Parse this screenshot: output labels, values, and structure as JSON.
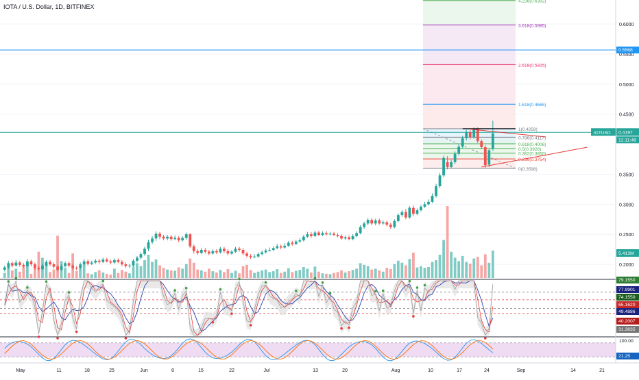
{
  "header": {
    "title": "IOTA / U.S. Dollar, 1D, BITFINEX"
  },
  "colors": {
    "up": "#26a69a",
    "down": "#ef5350",
    "vol_up": "#80cbc4",
    "vol_down": "#f4a6a4",
    "hline": "#2196f3",
    "fib_top": "#d1e7dd"
  },
  "price_axis": {
    "ticks": [
      "0.6000",
      "0.5500",
      "0.5000",
      "0.4500",
      "0.3500",
      "0.3000",
      "0.2500",
      "0.2000"
    ],
    "tick_values": [
      0.6,
      0.55,
      0.5,
      0.45,
      0.35,
      0.3,
      0.25,
      0.2
    ],
    "ylim": [
      0.175,
      0.64
    ]
  },
  "badges": {
    "hline_value": "0.5568",
    "symbol": "IOTUSD",
    "last_price": "0.4197",
    "countdown": "12:11:48",
    "volume": "5.413M"
  },
  "osc1_badges": [
    "79.1550",
    "77.9901",
    "74.1550",
    "65.1620",
    "49.4886",
    "40.2007",
    "31.3835"
  ],
  "osc2_badges": [
    "100.00",
    "21.25"
  ],
  "x_axis": {
    "labels": [
      "May",
      "11",
      "18",
      "25",
      "Jun",
      "8",
      "15",
      "22",
      "Jul",
      "13",
      "20",
      "Aug",
      "10",
      "17",
      "24",
      "Sep",
      "14",
      "21"
    ]
  },
  "fib_levels": [
    {
      "label": "4.236(0.6392)",
      "value": 0.6392,
      "color": "#4caf50"
    },
    {
      "label": "3.618(0.5985)",
      "value": 0.5985,
      "color": "#9c27b0"
    },
    {
      "label": "2.618(0.5325)",
      "value": 0.5325,
      "color": "#e91e63"
    },
    {
      "label": "1.618(0.4665)",
      "value": 0.4665,
      "color": "#2196f3"
    },
    {
      "label": "1(0.4258)",
      "value": 0.4258,
      "color": "#787b86"
    },
    {
      "label": "0.786(0.4117)",
      "value": 0.4117,
      "color": "#787b86"
    },
    {
      "label": "0.618(0.4006)",
      "value": 0.4006,
      "color": "#4caf50"
    },
    {
      "label": "0.5(0.3928)",
      "value": 0.3928,
      "color": "#4caf50"
    },
    {
      "label": "0.382(0.3850)",
      "value": 0.385,
      "color": "#4caf50"
    },
    {
      "label": "0.236(0.3754)",
      "value": 0.3754,
      "color": "#f44336"
    },
    {
      "label": "0(0.3598)",
      "value": 0.3598,
      "color": "#787b86"
    }
  ],
  "chart_data": {
    "type": "candlestick",
    "title": "IOTA / U.S. Dollar, 1D, BITFINEX",
    "horizontal_line": 0.5568,
    "last_price": 0.4197,
    "candles": [
      {
        "o": 0.191,
        "c": 0.195,
        "h": 0.198,
        "l": 0.188,
        "v": 0.12
      },
      {
        "o": 0.195,
        "c": 0.202,
        "h": 0.206,
        "l": 0.192,
        "v": 0.28
      },
      {
        "o": 0.202,
        "c": 0.198,
        "h": 0.205,
        "l": 0.195,
        "v": 0.18
      },
      {
        "o": 0.198,
        "c": 0.203,
        "h": 0.207,
        "l": 0.196,
        "v": 0.22
      },
      {
        "o": 0.203,
        "c": 0.199,
        "h": 0.206,
        "l": 0.196,
        "v": 0.15
      },
      {
        "o": 0.199,
        "c": 0.197,
        "h": 0.202,
        "l": 0.194,
        "v": 0.3
      },
      {
        "o": 0.197,
        "c": 0.205,
        "h": 0.209,
        "l": 0.195,
        "v": 0.35
      },
      {
        "o": 0.205,
        "c": 0.2,
        "h": 0.208,
        "l": 0.197,
        "v": 0.1
      },
      {
        "o": 0.2,
        "c": 0.194,
        "h": 0.203,
        "l": 0.191,
        "v": 0.26
      },
      {
        "o": 0.194,
        "c": 0.192,
        "h": 0.197,
        "l": 0.189,
        "v": 0.62
      },
      {
        "o": 0.192,
        "c": 0.198,
        "h": 0.201,
        "l": 0.19,
        "v": 0.48
      },
      {
        "o": 0.198,
        "c": 0.204,
        "h": 0.207,
        "l": 0.196,
        "v": 0.33
      },
      {
        "o": 0.204,
        "c": 0.2,
        "h": 0.207,
        "l": 0.197,
        "v": 0.14
      },
      {
        "o": 0.2,
        "c": 0.196,
        "h": 0.203,
        "l": 0.193,
        "v": 0.2
      },
      {
        "o": 0.196,
        "c": 0.191,
        "h": 0.199,
        "l": 0.188,
        "v": 1.0
      },
      {
        "o": 0.191,
        "c": 0.197,
        "h": 0.2,
        "l": 0.189,
        "v": 0.4
      },
      {
        "o": 0.197,
        "c": 0.202,
        "h": 0.205,
        "l": 0.195,
        "v": 0.24
      },
      {
        "o": 0.202,
        "c": 0.198,
        "h": 0.205,
        "l": 0.195,
        "v": 0.12
      },
      {
        "o": 0.198,
        "c": 0.194,
        "h": 0.201,
        "l": 0.191,
        "v": 0.58
      },
      {
        "o": 0.194,
        "c": 0.193,
        "h": 0.197,
        "l": 0.19,
        "v": 0.16
      },
      {
        "o": 0.193,
        "c": 0.2,
        "h": 0.203,
        "l": 0.191,
        "v": 0.21
      },
      {
        "o": 0.2,
        "c": 0.205,
        "h": 0.209,
        "l": 0.198,
        "v": 0.32
      },
      {
        "o": 0.205,
        "c": 0.201,
        "h": 0.208,
        "l": 0.198,
        "v": 0.11
      },
      {
        "o": 0.201,
        "c": 0.203,
        "h": 0.206,
        "l": 0.199,
        "v": 0.09
      },
      {
        "o": 0.203,
        "c": 0.206,
        "h": 0.209,
        "l": 0.201,
        "v": 0.14
      },
      {
        "o": 0.206,
        "c": 0.204,
        "h": 0.209,
        "l": 0.201,
        "v": 0.18
      },
      {
        "o": 0.204,
        "c": 0.208,
        "h": 0.211,
        "l": 0.202,
        "v": 0.13
      },
      {
        "o": 0.208,
        "c": 0.205,
        "h": 0.211,
        "l": 0.203,
        "v": 0.1
      },
      {
        "o": 0.205,
        "c": 0.203,
        "h": 0.208,
        "l": 0.2,
        "v": 0.08
      },
      {
        "o": 0.203,
        "c": 0.207,
        "h": 0.21,
        "l": 0.201,
        "v": 0.22
      },
      {
        "o": 0.207,
        "c": 0.204,
        "h": 0.21,
        "l": 0.202,
        "v": 0.12
      },
      {
        "o": 0.204,
        "c": 0.2,
        "h": 0.207,
        "l": 0.197,
        "v": 0.19
      },
      {
        "o": 0.2,
        "c": 0.197,
        "h": 0.203,
        "l": 0.194,
        "v": 0.15
      },
      {
        "o": 0.197,
        "c": 0.198,
        "h": 0.201,
        "l": 0.194,
        "v": 0.11
      },
      {
        "o": 0.198,
        "c": 0.206,
        "h": 0.209,
        "l": 0.196,
        "v": 0.27
      },
      {
        "o": 0.206,
        "c": 0.211,
        "h": 0.214,
        "l": 0.203,
        "v": 0.35
      },
      {
        "o": 0.211,
        "c": 0.217,
        "h": 0.22,
        "l": 0.208,
        "v": 0.28
      },
      {
        "o": 0.217,
        "c": 0.226,
        "h": 0.229,
        "l": 0.214,
        "v": 0.42
      },
      {
        "o": 0.226,
        "c": 0.237,
        "h": 0.241,
        "l": 0.222,
        "v": 0.55
      },
      {
        "o": 0.237,
        "c": 0.243,
        "h": 0.247,
        "l": 0.234,
        "v": 0.38
      },
      {
        "o": 0.243,
        "c": 0.251,
        "h": 0.255,
        "l": 0.239,
        "v": 0.44
      },
      {
        "o": 0.251,
        "c": 0.246,
        "h": 0.254,
        "l": 0.242,
        "v": 0.3
      },
      {
        "o": 0.246,
        "c": 0.243,
        "h": 0.249,
        "l": 0.24,
        "v": 0.24
      },
      {
        "o": 0.243,
        "c": 0.246,
        "h": 0.249,
        "l": 0.24,
        "v": 0.2
      },
      {
        "o": 0.246,
        "c": 0.242,
        "h": 0.249,
        "l": 0.239,
        "v": 0.18
      },
      {
        "o": 0.242,
        "c": 0.244,
        "h": 0.248,
        "l": 0.24,
        "v": 0.17
      },
      {
        "o": 0.244,
        "c": 0.24,
        "h": 0.247,
        "l": 0.237,
        "v": 0.25
      },
      {
        "o": 0.24,
        "c": 0.244,
        "h": 0.247,
        "l": 0.238,
        "v": 0.22
      },
      {
        "o": 0.244,
        "c": 0.25,
        "h": 0.253,
        "l": 0.241,
        "v": 0.33
      },
      {
        "o": 0.25,
        "c": 0.23,
        "h": 0.252,
        "l": 0.227,
        "v": 0.46
      },
      {
        "o": 0.23,
        "c": 0.222,
        "h": 0.233,
        "l": 0.218,
        "v": 0.36
      },
      {
        "o": 0.222,
        "c": 0.219,
        "h": 0.225,
        "l": 0.216,
        "v": 0.2
      },
      {
        "o": 0.219,
        "c": 0.224,
        "h": 0.227,
        "l": 0.217,
        "v": 0.18
      },
      {
        "o": 0.224,
        "c": 0.221,
        "h": 0.227,
        "l": 0.218,
        "v": 0.15
      },
      {
        "o": 0.221,
        "c": 0.218,
        "h": 0.224,
        "l": 0.215,
        "v": 0.22
      },
      {
        "o": 0.218,
        "c": 0.222,
        "h": 0.225,
        "l": 0.216,
        "v": 0.16
      },
      {
        "o": 0.222,
        "c": 0.22,
        "h": 0.225,
        "l": 0.217,
        "v": 0.13
      },
      {
        "o": 0.22,
        "c": 0.226,
        "h": 0.229,
        "l": 0.218,
        "v": 0.19
      },
      {
        "o": 0.226,
        "c": 0.222,
        "h": 0.229,
        "l": 0.219,
        "v": 0.14
      },
      {
        "o": 0.222,
        "c": 0.218,
        "h": 0.225,
        "l": 0.215,
        "v": 0.21
      },
      {
        "o": 0.218,
        "c": 0.221,
        "h": 0.224,
        "l": 0.216,
        "v": 0.12
      },
      {
        "o": 0.221,
        "c": 0.226,
        "h": 0.229,
        "l": 0.219,
        "v": 0.17
      },
      {
        "o": 0.226,
        "c": 0.224,
        "h": 0.229,
        "l": 0.221,
        "v": 0.11
      },
      {
        "o": 0.224,
        "c": 0.218,
        "h": 0.227,
        "l": 0.215,
        "v": 0.28
      },
      {
        "o": 0.218,
        "c": 0.214,
        "h": 0.221,
        "l": 0.211,
        "v": 0.31
      },
      {
        "o": 0.214,
        "c": 0.212,
        "h": 0.217,
        "l": 0.209,
        "v": 0.19
      },
      {
        "o": 0.212,
        "c": 0.213,
        "h": 0.217,
        "l": 0.21,
        "v": 0.12
      },
      {
        "o": 0.213,
        "c": 0.217,
        "h": 0.22,
        "l": 0.211,
        "v": 0.15
      },
      {
        "o": 0.217,
        "c": 0.22,
        "h": 0.223,
        "l": 0.215,
        "v": 0.18
      },
      {
        "o": 0.22,
        "c": 0.223,
        "h": 0.226,
        "l": 0.218,
        "v": 0.2
      },
      {
        "o": 0.223,
        "c": 0.224,
        "h": 0.228,
        "l": 0.221,
        "v": 0.14
      },
      {
        "o": 0.224,
        "c": 0.227,
        "h": 0.23,
        "l": 0.222,
        "v": 0.16
      },
      {
        "o": 0.227,
        "c": 0.23,
        "h": 0.234,
        "l": 0.225,
        "v": 0.21
      },
      {
        "o": 0.23,
        "c": 0.228,
        "h": 0.233,
        "l": 0.225,
        "v": 0.12
      },
      {
        "o": 0.228,
        "c": 0.231,
        "h": 0.235,
        "l": 0.226,
        "v": 0.15
      },
      {
        "o": 0.231,
        "c": 0.236,
        "h": 0.239,
        "l": 0.229,
        "v": 0.23
      },
      {
        "o": 0.236,
        "c": 0.234,
        "h": 0.239,
        "l": 0.231,
        "v": 0.14
      },
      {
        "o": 0.234,
        "c": 0.238,
        "h": 0.241,
        "l": 0.232,
        "v": 0.17
      },
      {
        "o": 0.238,
        "c": 0.24,
        "h": 0.244,
        "l": 0.236,
        "v": 0.19
      },
      {
        "o": 0.24,
        "c": 0.246,
        "h": 0.249,
        "l": 0.238,
        "v": 0.26
      },
      {
        "o": 0.246,
        "c": 0.25,
        "h": 0.254,
        "l": 0.244,
        "v": 0.22
      },
      {
        "o": 0.25,
        "c": 0.247,
        "h": 0.254,
        "l": 0.244,
        "v": 0.13
      },
      {
        "o": 0.247,
        "c": 0.253,
        "h": 0.256,
        "l": 0.245,
        "v": 0.27
      },
      {
        "o": 0.253,
        "c": 0.249,
        "h": 0.256,
        "l": 0.247,
        "v": 0.15
      },
      {
        "o": 0.249,
        "c": 0.252,
        "h": 0.255,
        "l": 0.247,
        "v": 0.11
      },
      {
        "o": 0.252,
        "c": 0.25,
        "h": 0.255,
        "l": 0.248,
        "v": 0.1
      },
      {
        "o": 0.25,
        "c": 0.251,
        "h": 0.254,
        "l": 0.248,
        "v": 0.09
      },
      {
        "o": 0.251,
        "c": 0.249,
        "h": 0.254,
        "l": 0.247,
        "v": 0.12
      },
      {
        "o": 0.249,
        "c": 0.247,
        "h": 0.252,
        "l": 0.245,
        "v": 0.14
      },
      {
        "o": 0.247,
        "c": 0.243,
        "h": 0.25,
        "l": 0.241,
        "v": 0.18
      },
      {
        "o": 0.243,
        "c": 0.245,
        "h": 0.248,
        "l": 0.241,
        "v": 0.13
      },
      {
        "o": 0.245,
        "c": 0.242,
        "h": 0.248,
        "l": 0.24,
        "v": 0.16
      },
      {
        "o": 0.242,
        "c": 0.247,
        "h": 0.25,
        "l": 0.24,
        "v": 0.19
      },
      {
        "o": 0.247,
        "c": 0.252,
        "h": 0.255,
        "l": 0.245,
        "v": 0.22
      },
      {
        "o": 0.252,
        "c": 0.262,
        "h": 0.265,
        "l": 0.25,
        "v": 0.35
      },
      {
        "o": 0.262,
        "c": 0.268,
        "h": 0.271,
        "l": 0.259,
        "v": 0.31
      },
      {
        "o": 0.268,
        "c": 0.274,
        "h": 0.277,
        "l": 0.265,
        "v": 0.28
      },
      {
        "o": 0.274,
        "c": 0.268,
        "h": 0.277,
        "l": 0.265,
        "v": 0.2
      },
      {
        "o": 0.268,
        "c": 0.273,
        "h": 0.276,
        "l": 0.265,
        "v": 0.22
      },
      {
        "o": 0.273,
        "c": 0.268,
        "h": 0.276,
        "l": 0.266,
        "v": 0.18
      },
      {
        "o": 0.268,
        "c": 0.27,
        "h": 0.273,
        "l": 0.266,
        "v": 0.15
      },
      {
        "o": 0.27,
        "c": 0.266,
        "h": 0.273,
        "l": 0.263,
        "v": 0.24
      },
      {
        "o": 0.266,
        "c": 0.262,
        "h": 0.269,
        "l": 0.259,
        "v": 0.21
      },
      {
        "o": 0.262,
        "c": 0.272,
        "h": 0.275,
        "l": 0.26,
        "v": 0.33
      },
      {
        "o": 0.272,
        "c": 0.282,
        "h": 0.285,
        "l": 0.27,
        "v": 0.41
      },
      {
        "o": 0.282,
        "c": 0.287,
        "h": 0.29,
        "l": 0.279,
        "v": 0.36
      },
      {
        "o": 0.287,
        "c": 0.278,
        "h": 0.292,
        "l": 0.275,
        "v": 0.3
      },
      {
        "o": 0.278,
        "c": 0.294,
        "h": 0.297,
        "l": 0.276,
        "v": 0.45
      },
      {
        "o": 0.294,
        "c": 0.284,
        "h": 0.298,
        "l": 0.28,
        "v": 0.6
      },
      {
        "o": 0.284,
        "c": 0.29,
        "h": 0.293,
        "l": 0.282,
        "v": 0.25
      },
      {
        "o": 0.29,
        "c": 0.296,
        "h": 0.299,
        "l": 0.288,
        "v": 0.28
      },
      {
        "o": 0.296,
        "c": 0.3,
        "h": 0.304,
        "l": 0.294,
        "v": 0.24
      },
      {
        "o": 0.3,
        "c": 0.304,
        "h": 0.308,
        "l": 0.298,
        "v": 0.26
      },
      {
        "o": 0.304,
        "c": 0.314,
        "h": 0.318,
        "l": 0.302,
        "v": 0.38
      },
      {
        "o": 0.314,
        "c": 0.33,
        "h": 0.334,
        "l": 0.311,
        "v": 0.42
      },
      {
        "o": 0.33,
        "c": 0.348,
        "h": 0.352,
        "l": 0.327,
        "v": 0.55
      },
      {
        "o": 0.348,
        "c": 0.377,
        "h": 0.381,
        "l": 0.345,
        "v": 0.9
      },
      {
        "o": 0.37,
        "c": 0.362,
        "h": 0.38,
        "l": 0.358,
        "v": 1.7
      },
      {
        "o": 0.362,
        "c": 0.37,
        "h": 0.374,
        "l": 0.36,
        "v": 0.62
      },
      {
        "o": 0.37,
        "c": 0.384,
        "h": 0.388,
        "l": 0.367,
        "v": 0.48
      },
      {
        "o": 0.384,
        "c": 0.396,
        "h": 0.4,
        "l": 0.381,
        "v": 0.4
      },
      {
        "o": 0.396,
        "c": 0.41,
        "h": 0.414,
        "l": 0.393,
        "v": 0.52
      },
      {
        "o": 0.41,
        "c": 0.42,
        "h": 0.424,
        "l": 0.406,
        "v": 0.38
      },
      {
        "o": 0.42,
        "c": 0.412,
        "h": 0.424,
        "l": 0.408,
        "v": 0.34
      },
      {
        "o": 0.412,
        "c": 0.425,
        "h": 0.428,
        "l": 0.409,
        "v": 0.46
      },
      {
        "o": 0.425,
        "c": 0.405,
        "h": 0.428,
        "l": 0.402,
        "v": 0.5
      },
      {
        "o": 0.405,
        "c": 0.395,
        "h": 0.408,
        "l": 0.392,
        "v": 0.3
      },
      {
        "o": 0.395,
        "c": 0.365,
        "h": 0.398,
        "l": 0.36,
        "v": 0.56
      },
      {
        "o": 0.366,
        "c": 0.39,
        "h": 0.393,
        "l": 0.362,
        "v": 0.36
      },
      {
        "o": 0.392,
        "c": 0.418,
        "h": 0.439,
        "l": 0.389,
        "v": 0.65
      }
    ],
    "fibonacci": [
      0.6392,
      0.5985,
      0.5325,
      0.4665,
      0.4258,
      0.4117,
      0.4006,
      0.3928,
      0.385,
      0.3754,
      0.3598
    ]
  }
}
